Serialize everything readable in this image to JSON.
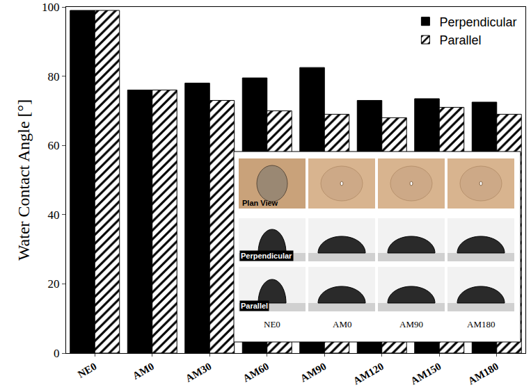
{
  "chart_data": {
    "type": "bar",
    "y_label": "Water Contact Angle [°]",
    "categories": [
      "NE0",
      "AM0",
      "AM30",
      "AM60",
      "AM90",
      "AM120",
      "AM150",
      "AM180"
    ],
    "series": [
      {
        "name": "Perpendicular",
        "color": "#000000",
        "marker": "solid",
        "values": [
          99,
          76,
          78,
          79.5,
          82.5,
          73,
          73.5,
          72.5
        ]
      },
      {
        "name": "Parallel",
        "color": "#000000",
        "marker": "hatched",
        "values": [
          99,
          76,
          73,
          70,
          69,
          68,
          71,
          69
        ]
      }
    ],
    "ylim": [
      0,
      100
    ],
    "yticks": [
      0,
      20,
      40,
      60,
      80,
      100
    ],
    "grid": false,
    "legend": "upper right",
    "inset": {
      "row_labels": [
        "Plan View",
        "Perpendicular",
        "Parallel"
      ],
      "column_labels": [
        "NE0",
        "AM0",
        "AM90",
        "AM180"
      ]
    }
  }
}
